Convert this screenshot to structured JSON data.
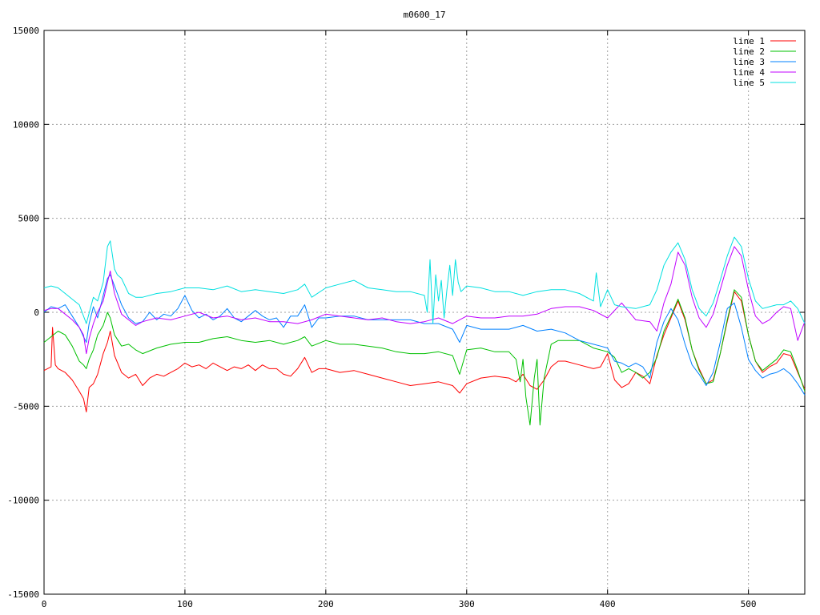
{
  "chart_data": {
    "type": "line",
    "title": "m0600_17",
    "xlim": [
      0,
      540
    ],
    "ylim": [
      -15000,
      15000
    ],
    "x_ticks": [
      0,
      100,
      200,
      300,
      400,
      500
    ],
    "y_ticks": [
      -15000,
      -10000,
      -5000,
      0,
      5000,
      10000,
      15000
    ],
    "grid": true,
    "legend_position": "top-right",
    "series": [
      {
        "name": "line 1",
        "color": "#ff0000",
        "x": [
          0,
          5,
          6,
          8,
          10,
          15,
          20,
          25,
          28,
          30,
          32,
          35,
          38,
          42,
          45,
          47,
          50,
          55,
          60,
          65,
          70,
          75,
          80,
          85,
          90,
          95,
          100,
          105,
          110,
          115,
          120,
          125,
          130,
          135,
          140,
          145,
          150,
          155,
          160,
          165,
          170,
          175,
          180,
          185,
          190,
          195,
          200,
          210,
          220,
          230,
          240,
          250,
          260,
          270,
          280,
          290,
          295,
          300,
          310,
          320,
          330,
          335,
          340,
          345,
          350,
          355,
          360,
          365,
          370,
          380,
          390,
          395,
          400,
          405,
          410,
          415,
          420,
          425,
          430,
          435,
          440,
          445,
          450,
          455,
          460,
          465,
          470,
          475,
          480,
          485,
          490,
          495,
          500,
          505,
          510,
          515,
          520,
          525,
          530,
          535,
          540
        ],
        "y": [
          -3100,
          -2900,
          -800,
          -2800,
          -3000,
          -3200,
          -3600,
          -4200,
          -4600,
          -5300,
          -4000,
          -3800,
          -3300,
          -2200,
          -1600,
          -1000,
          -2300,
          -3200,
          -3500,
          -3300,
          -3900,
          -3500,
          -3300,
          -3400,
          -3200,
          -3000,
          -2700,
          -2900,
          -2800,
          -3000,
          -2700,
          -2900,
          -3100,
          -2900,
          -3000,
          -2800,
          -3100,
          -2800,
          -3000,
          -3000,
          -3300,
          -3400,
          -3000,
          -2400,
          -3200,
          -3000,
          -3000,
          -3200,
          -3100,
          -3300,
          -3500,
          -3700,
          -3900,
          -3800,
          -3700,
          -3900,
          -4300,
          -3800,
          -3500,
          -3400,
          -3500,
          -3700,
          -3300,
          -3900,
          -4100,
          -3600,
          -2900,
          -2600,
          -2600,
          -2800,
          -3000,
          -2900,
          -2200,
          -3600,
          -4000,
          -3800,
          -3200,
          -3400,
          -3800,
          -2300,
          -1200,
          -300,
          600,
          -400,
          -2000,
          -3000,
          -3800,
          -3600,
          -2200,
          -500,
          1100,
          600,
          -1200,
          -2600,
          -3200,
          -2900,
          -2700,
          -2200,
          -2300,
          -3200,
          -4100
        ]
      },
      {
        "name": "line 2",
        "color": "#00c000",
        "x": [
          0,
          5,
          10,
          15,
          20,
          25,
          28,
          30,
          32,
          35,
          38,
          42,
          45,
          47,
          50,
          55,
          60,
          65,
          70,
          80,
          90,
          100,
          110,
          120,
          130,
          140,
          150,
          160,
          170,
          180,
          185,
          190,
          200,
          210,
          220,
          230,
          240,
          250,
          260,
          270,
          280,
          290,
          295,
          300,
          310,
          320,
          330,
          335,
          338,
          340,
          342,
          345,
          348,
          350,
          352,
          355,
          360,
          365,
          370,
          380,
          390,
          400,
          405,
          410,
          415,
          420,
          425,
          430,
          435,
          440,
          445,
          450,
          455,
          460,
          465,
          470,
          475,
          480,
          485,
          490,
          495,
          500,
          505,
          510,
          515,
          520,
          525,
          530,
          535,
          540
        ],
        "y": [
          -1600,
          -1300,
          -1000,
          -1200,
          -1800,
          -2600,
          -2800,
          -3000,
          -2500,
          -2000,
          -1200,
          -700,
          0,
          -300,
          -1200,
          -1800,
          -1700,
          -2000,
          -2200,
          -1900,
          -1700,
          -1600,
          -1600,
          -1400,
          -1300,
          -1500,
          -1600,
          -1500,
          -1700,
          -1500,
          -1300,
          -1800,
          -1500,
          -1700,
          -1700,
          -1800,
          -1900,
          -2100,
          -2200,
          -2200,
          -2100,
          -2300,
          -3300,
          -2000,
          -1900,
          -2100,
          -2100,
          -2500,
          -3700,
          -2500,
          -4500,
          -6000,
          -3500,
          -2500,
          -6000,
          -3500,
          -1700,
          -1500,
          -1500,
          -1500,
          -1900,
          -2100,
          -2400,
          -3200,
          -3000,
          -3200,
          -3500,
          -3200,
          -2400,
          -1000,
          -200,
          700,
          -300,
          -2000,
          -3100,
          -3800,
          -3700,
          -2200,
          -400,
          1200,
          800,
          -1200,
          -2600,
          -3100,
          -2800,
          -2500,
          -2000,
          -2100,
          -3100,
          -4200
        ]
      },
      {
        "name": "line 3",
        "color": "#0080ff",
        "x": [
          0,
          5,
          10,
          15,
          20,
          25,
          28,
          30,
          32,
          35,
          38,
          42,
          45,
          47,
          50,
          55,
          60,
          65,
          70,
          75,
          80,
          85,
          90,
          95,
          100,
          105,
          110,
          115,
          120,
          125,
          130,
          135,
          140,
          145,
          150,
          155,
          160,
          165,
          170,
          175,
          180,
          185,
          190,
          195,
          200,
          210,
          220,
          230,
          240,
          250,
          260,
          270,
          280,
          290,
          295,
          300,
          310,
          320,
          330,
          340,
          350,
          360,
          370,
          380,
          390,
          395,
          400,
          405,
          410,
          415,
          420,
          425,
          430,
          435,
          440,
          445,
          450,
          455,
          460,
          465,
          470,
          475,
          480,
          485,
          490,
          495,
          500,
          505,
          510,
          515,
          520,
          525,
          530,
          535,
          540
        ],
        "y": [
          0,
          300,
          200,
          400,
          -200,
          -800,
          -1300,
          -1600,
          -600,
          300,
          -300,
          900,
          1800,
          2000,
          1400,
          400,
          -300,
          -600,
          -500,
          0,
          -400,
          -100,
          -200,
          200,
          900,
          100,
          -300,
          -100,
          -400,
          -200,
          200,
          -300,
          -500,
          -200,
          100,
          -200,
          -400,
          -300,
          -800,
          -200,
          -200,
          400,
          -800,
          -300,
          -300,
          -200,
          -200,
          -400,
          -400,
          -400,
          -400,
          -600,
          -600,
          -900,
          -1600,
          -700,
          -900,
          -900,
          -900,
          -700,
          -1000,
          -900,
          -1100,
          -1500,
          -1700,
          -1800,
          -1900,
          -2600,
          -2700,
          -2900,
          -2700,
          -2900,
          -3500,
          -1600,
          -500,
          200,
          -400,
          -1700,
          -2800,
          -3300,
          -3900,
          -3200,
          -1600,
          200,
          500,
          -800,
          -2500,
          -3100,
          -3500,
          -3300,
          -3200,
          -3000,
          -3300,
          -3800,
          -4400
        ]
      },
      {
        "name": "line 4",
        "color": "#c000ff",
        "x": [
          0,
          5,
          10,
          15,
          20,
          25,
          28,
          30,
          32,
          35,
          38,
          42,
          45,
          47,
          50,
          55,
          60,
          65,
          70,
          80,
          90,
          100,
          110,
          120,
          130,
          140,
          150,
          160,
          170,
          180,
          190,
          200,
          210,
          220,
          230,
          240,
          250,
          260,
          270,
          280,
          290,
          300,
          310,
          320,
          330,
          340,
          350,
          360,
          370,
          380,
          390,
          400,
          410,
          420,
          430,
          435,
          440,
          445,
          450,
          455,
          460,
          465,
          470,
          475,
          480,
          485,
          490,
          495,
          500,
          505,
          510,
          515,
          520,
          525,
          530,
          535,
          540
        ],
        "y": [
          100,
          200,
          200,
          -100,
          -400,
          -800,
          -1200,
          -2200,
          -1400,
          -600,
          0,
          600,
          1600,
          2200,
          1000,
          -100,
          -400,
          -700,
          -500,
          -300,
          -400,
          -200,
          0,
          -300,
          -200,
          -400,
          -300,
          -500,
          -500,
          -600,
          -400,
          -100,
          -200,
          -300,
          -400,
          -300,
          -500,
          -600,
          -500,
          -300,
          -600,
          -200,
          -300,
          -300,
          -200,
          -200,
          -100,
          200,
          300,
          300,
          100,
          -300,
          500,
          -400,
          -500,
          -1000,
          500,
          1500,
          3200,
          2500,
          800,
          -300,
          -800,
          -100,
          1200,
          2500,
          3500,
          3000,
          1200,
          -200,
          -600,
          -400,
          0,
          300,
          200,
          -1500,
          -500
        ]
      },
      {
        "name": "line 5",
        "color": "#00e0e0",
        "x": [
          0,
          5,
          10,
          15,
          20,
          25,
          30,
          35,
          38,
          42,
          45,
          47,
          50,
          52,
          55,
          60,
          65,
          70,
          80,
          90,
          100,
          110,
          120,
          130,
          140,
          150,
          160,
          170,
          180,
          185,
          190,
          200,
          210,
          220,
          230,
          240,
          250,
          260,
          270,
          272,
          274,
          276,
          278,
          280,
          282,
          284,
          286,
          288,
          290,
          292,
          294,
          296,
          300,
          310,
          320,
          330,
          340,
          350,
          360,
          370,
          380,
          390,
          392,
          395,
          400,
          405,
          410,
          420,
          430,
          435,
          440,
          445,
          450,
          455,
          460,
          465,
          470,
          475,
          480,
          485,
          490,
          495,
          500,
          505,
          510,
          515,
          520,
          525,
          530,
          535,
          540
        ],
        "y": [
          1300,
          1400,
          1300,
          1000,
          700,
          400,
          -600,
          800,
          600,
          1600,
          3500,
          3800,
          2300,
          2000,
          1800,
          1000,
          800,
          800,
          1000,
          1100,
          1300,
          1300,
          1200,
          1400,
          1100,
          1200,
          1100,
          1000,
          1200,
          1500,
          800,
          1300,
          1500,
          1700,
          1300,
          1200,
          1100,
          1100,
          900,
          0,
          2800,
          -600,
          2000,
          600,
          1700,
          -300,
          1200,
          2500,
          900,
          2800,
          1600,
          1100,
          1400,
          1300,
          1100,
          1100,
          900,
          1100,
          1200,
          1200,
          1000,
          600,
          2100,
          300,
          1200,
          400,
          300,
          200,
          400,
          1200,
          2500,
          3200,
          3700,
          2800,
          1200,
          200,
          -200,
          500,
          1700,
          3000,
          4000,
          3500,
          1800,
          600,
          200,
          300,
          400,
          400,
          600,
          200,
          -600
        ]
      }
    ]
  }
}
